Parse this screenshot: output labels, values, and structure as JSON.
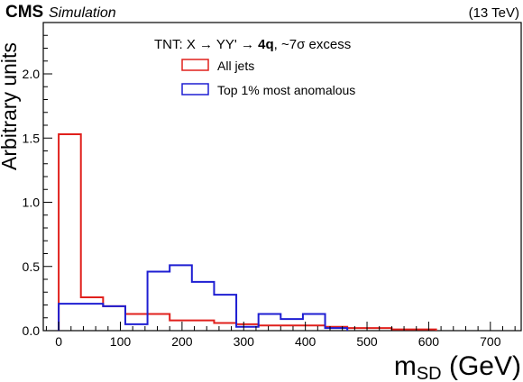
{
  "header": {
    "experiment": "CMS",
    "label": "Simulation",
    "energy": "(13 TeV)"
  },
  "legend": {
    "title_prefix": "TNT: X ",
    "title_arrow1": "→",
    "title_mid": " YY' ",
    "title_arrow2": "→",
    "title_bold": " 4q",
    "title_suffix": ",  ~7σ excess",
    "placement": "top-center"
  },
  "chart_data": {
    "type": "histogram",
    "xlabel_main": "m",
    "xlabel_sub": "SD",
    "xlabel_unit": " (GeV)",
    "ylabel": "Arbitrary units",
    "xlim": [
      -25,
      750
    ],
    "ylim": [
      0,
      2.4
    ],
    "x_ticks": [
      "0",
      "100",
      "200",
      "300",
      "400",
      "500",
      "600",
      "700"
    ],
    "y_ticks": [
      "0.0",
      "0.5",
      "1.0",
      "1.5",
      "2.0"
    ],
    "bin_edges": [
      0,
      36,
      72,
      108,
      144,
      180,
      216,
      252,
      288,
      324,
      360,
      396,
      432,
      468,
      504,
      540,
      576,
      612,
      648,
      684,
      720
    ],
    "series": [
      {
        "name": "All jets",
        "color": "#e0201c",
        "values": [
          1.53,
          0.26,
          0.19,
          0.13,
          0.13,
          0.08,
          0.08,
          0.06,
          0.05,
          0.04,
          0.04,
          0.04,
          0.03,
          0.02,
          0.02,
          0.01,
          0.01,
          0.0,
          0.0,
          0.0
        ]
      },
      {
        "name": "Top 1% most anomalous",
        "color": "#1e1ed2",
        "values": [
          0.21,
          0.21,
          0.19,
          0.05,
          0.46,
          0.51,
          0.38,
          0.28,
          0.03,
          0.13,
          0.09,
          0.13,
          0.02,
          0.0,
          0.0,
          0.0,
          0.0,
          0.0,
          0.0,
          0.0
        ]
      }
    ]
  }
}
